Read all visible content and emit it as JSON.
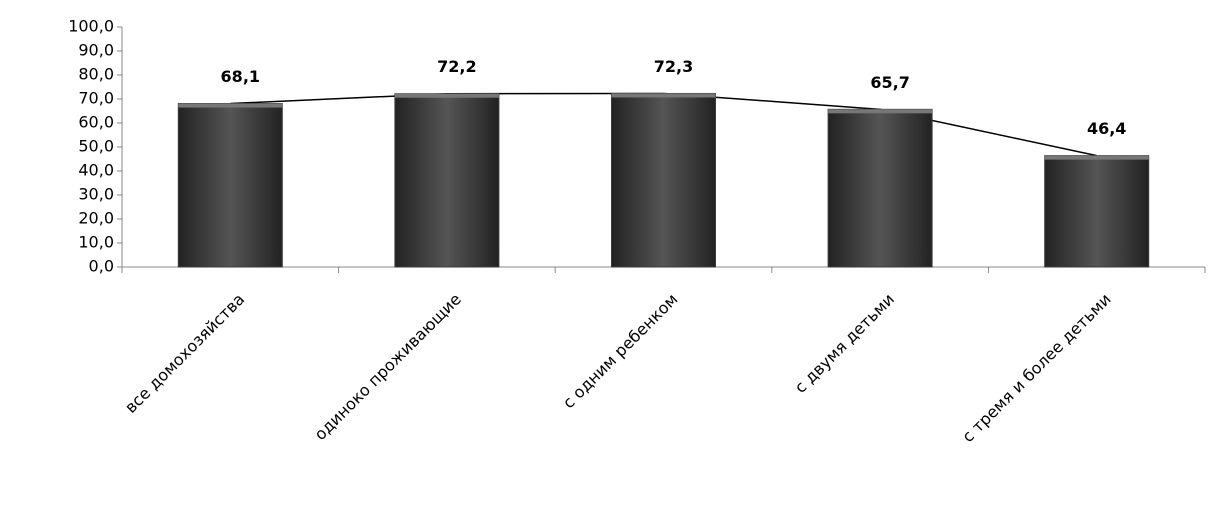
{
  "chart_data": {
    "type": "bar",
    "overlay_line": true,
    "categories": [
      "все домохозяйства",
      "одиноко проживающие",
      "с одним ребенком",
      "с двумя детьми",
      "с тремя и более детьми"
    ],
    "values": [
      68.1,
      72.2,
      72.3,
      65.7,
      46.4
    ],
    "value_labels": [
      "68,1",
      "72,2",
      "72,3",
      "65,7",
      "46,4"
    ],
    "color": "#3a3a3a",
    "line_color": "#000000",
    "ylim": [
      0,
      100
    ],
    "yticks": [
      {
        "value": 0,
        "label": "0,0"
      },
      {
        "value": 10,
        "label": "10,0"
      },
      {
        "value": 20,
        "label": "20,0"
      },
      {
        "value": 30,
        "label": "30,0"
      },
      {
        "value": 40,
        "label": "40,0"
      },
      {
        "value": 50,
        "label": "50,0"
      },
      {
        "value": 60,
        "label": "60,0"
      },
      {
        "value": 70,
        "label": "70,0"
      },
      {
        "value": 80,
        "label": "80,0"
      },
      {
        "value": 90,
        "label": "90,0"
      },
      {
        "value": 100,
        "label": "100,0"
      }
    ]
  }
}
